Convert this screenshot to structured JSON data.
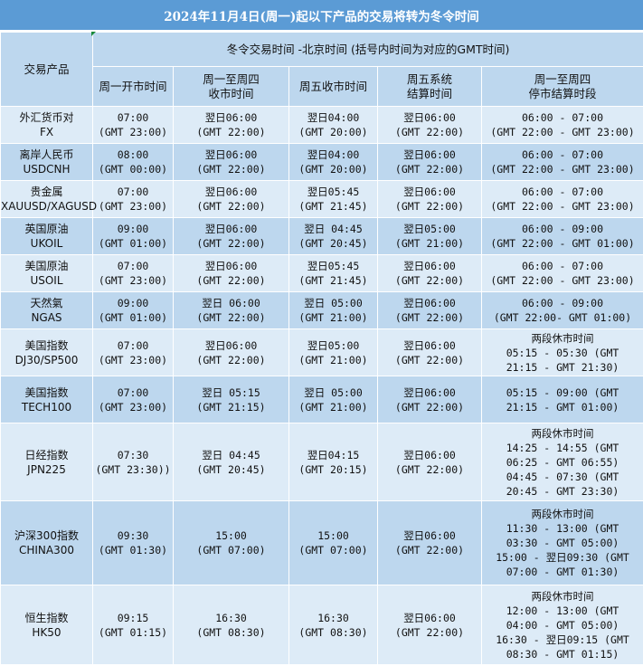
{
  "title": "2024年11月4日(周一)起以下产品的交易将转为冬令时间",
  "header": {
    "product": "交易产品",
    "group": "冬令交易时间 -北京时间 (括号内时间为对应的GMT时间)",
    "columns": [
      [
        "周一开市时间"
      ],
      [
        "周一至周四",
        "收市时间"
      ],
      [
        "周五收市时间"
      ],
      [
        "周五系统",
        "结算时间"
      ],
      [
        "周一至周四",
        "停市结算时段"
      ]
    ]
  },
  "colors": {
    "title_bg": "#5b9bd5",
    "header_bg": "#bdd7ee",
    "row_light": "#ddebf7",
    "row_dark": "#bdd7ee"
  },
  "rows": [
    {
      "product": [
        "外汇货币对",
        "FX"
      ],
      "cells": [
        [
          "07:00",
          "(GMT 23:00)"
        ],
        [
          "翌日06:00",
          "(GMT 22:00)"
        ],
        [
          "翌日04:00",
          "(GMT 20:00)"
        ],
        [
          "翌日06:00",
          "(GMT 22:00)"
        ],
        [
          "06:00 - 07:00",
          "(GMT 22:00 - GMT 23:00)"
        ]
      ]
    },
    {
      "product": [
        "离岸人民币",
        "USDCNH"
      ],
      "cells": [
        [
          "08:00",
          "(GMT 00:00)"
        ],
        [
          "翌日06:00",
          "(GMT 22:00)"
        ],
        [
          "翌日04:00",
          "(GMT 20:00)"
        ],
        [
          "翌日06:00",
          "(GMT 22:00)"
        ],
        [
          "06:00 - 07:00",
          "(GMT 22:00 - GMT 23:00)"
        ]
      ]
    },
    {
      "product": [
        "贵金属",
        "XAUUSD/XAGUSD"
      ],
      "cells": [
        [
          "07:00",
          "(GMT 23:00)"
        ],
        [
          "翌日06:00",
          "(GMT 22:00)"
        ],
        [
          "翌日05:45",
          "(GMT 21:45)"
        ],
        [
          "翌日06:00",
          "(GMT 22:00)"
        ],
        [
          "06:00 - 07:00",
          "(GMT 22:00 - GMT 23:00)"
        ]
      ]
    },
    {
      "product": [
        "英国原油",
        "UKOIL"
      ],
      "cells": [
        [
          "09:00",
          "(GMT 01:00)"
        ],
        [
          "翌日06:00",
          "(GMT 22:00)"
        ],
        [
          "翌日 04:45",
          "(GMT 20:45)"
        ],
        [
          "翌日05:00",
          "(GMT 21:00)"
        ],
        [
          "06:00 - 09:00",
          "(GMT 22:00 - GMT 01:00)"
        ]
      ]
    },
    {
      "product": [
        "美国原油",
        "USOIL"
      ],
      "cells": [
        [
          "07:00",
          "(GMT 23:00)"
        ],
        [
          "翌日06:00",
          "(GMT 22:00)"
        ],
        [
          "翌日05:45",
          "(GMT 21:45)"
        ],
        [
          "翌日06:00",
          "(GMT 22:00)"
        ],
        [
          "06:00 - 07:00",
          "(GMT 22:00 - GMT 23:00)"
        ]
      ]
    },
    {
      "product": [
        "天然氣",
        "NGAS"
      ],
      "cells": [
        [
          "09:00",
          "(GMT 01:00)"
        ],
        [
          "翌日 06:00",
          "(GMT 22:00)"
        ],
        [
          "翌日 05:00",
          "(GMT 21:00)"
        ],
        [
          "翌日06:00",
          "(GMT 22:00)"
        ],
        [
          "06:00 - 09:00",
          "(GMT 22:00- GMT 01:00)"
        ]
      ]
    },
    {
      "product": [
        "美国指数",
        "DJ30/SP500"
      ],
      "cells": [
        [
          "07:00",
          "(GMT 23:00)"
        ],
        [
          "翌日06:00",
          "(GMT 22:00)"
        ],
        [
          "翌日05:00",
          "(GMT 21:00)"
        ],
        [
          "翌日06:00",
          "(GMT 22:00)"
        ],
        [
          "两段休市时间",
          "05:15 - 05:30 (GMT",
          "21:15 - GMT 21:30)"
        ]
      ]
    },
    {
      "product": [
        "美国指数",
        "TECH100"
      ],
      "cells": [
        [
          "07:00",
          "(GMT 23:00)"
        ],
        [
          "翌日 05:15",
          "(GMT 21:15)"
        ],
        [
          "翌日 05:00",
          "(GMT 21:00)"
        ],
        [
          "翌日06:00",
          "(GMT 22:00)"
        ],
        [
          "05:15 - 09:00 (GMT",
          "21:15 - GMT 01:00)"
        ]
      ]
    },
    {
      "product": [
        "日经指数",
        "JPN225"
      ],
      "cells": [
        [
          "07:30",
          "(GMT 23:30))"
        ],
        [
          "翌日 04:45",
          "(GMT 20:45)"
        ],
        [
          "翌日04:15",
          "(GMT 20:15)"
        ],
        [
          "翌日06:00",
          "(GMT 22:00)"
        ],
        [
          "两段休市时间",
          "14:25 - 14:55 (GMT",
          "06:25 - GMT 06:55)",
          "04:45 - 07:30 (GMT",
          "20:45 - GMT 23:30)"
        ]
      ]
    },
    {
      "product": [
        "沪深300指数",
        "CHINA300"
      ],
      "cells": [
        [
          "09:30",
          "(GMT 01:30)"
        ],
        [
          "15:00",
          "(GMT 07:00)"
        ],
        [
          "15:00",
          "(GMT 07:00)"
        ],
        [
          "翌日06:00",
          "(GMT 22:00)"
        ],
        [
          "两段休市时间",
          "11:30 - 13:00 (GMT",
          "03:30 - GMT 05:00)",
          "15:00 - 翌日09:30 (GMT",
          "07:00 - GMT 01:30)"
        ]
      ]
    },
    {
      "product": [
        "恒生指数",
        "HK50"
      ],
      "cells": [
        [
          "09:15",
          "(GMT 01:15)"
        ],
        [
          "16:30",
          "(GMT 08:30)"
        ],
        [
          "16:30",
          "(GMT 08:30)"
        ],
        [
          "翌日06:00",
          "(GMT 22:00)"
        ],
        [
          "两段休市时间",
          "12:00 - 13:00 (GMT",
          "04:00 - GMT 05:00)",
          "16:30 - 翌日09:15 (GMT",
          "08:30 - GMT 01:15)"
        ]
      ]
    }
  ]
}
